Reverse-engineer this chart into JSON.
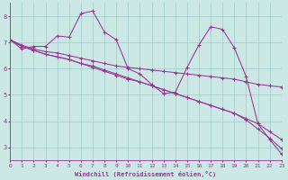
{
  "xlabel": "Windchill (Refroidissement éolien,°C)",
  "bg_color": "#cce8e4",
  "line_color": "#993399",
  "grid_color": "#99cccc",
  "xlim": [
    0,
    23
  ],
  "ylim": [
    2.5,
    8.5
  ],
  "yticks": [
    3,
    4,
    5,
    6,
    7,
    8
  ],
  "xticks": [
    0,
    1,
    2,
    3,
    4,
    5,
    6,
    7,
    8,
    9,
    10,
    11,
    12,
    13,
    14,
    15,
    16,
    17,
    18,
    19,
    20,
    21,
    22,
    23
  ],
  "series": [
    {
      "x": [
        0,
        1,
        2,
        3,
        4,
        5,
        6,
        7,
        8,
        9,
        10,
        11,
        12,
        13,
        14,
        15,
        16,
        17,
        18,
        19,
        20,
        21,
        22,
        23
      ],
      "y": [
        7.1,
        6.75,
        6.85,
        6.85,
        7.25,
        7.2,
        8.1,
        8.2,
        7.4,
        7.1,
        6.0,
        5.8,
        5.4,
        5.05,
        5.1,
        6.05,
        6.9,
        7.6,
        7.5,
        6.8,
        5.7,
        3.9,
        3.3,
        2.75
      ]
    },
    {
      "x": [
        0,
        1,
        2,
        3,
        4,
        5,
        6,
        7,
        8,
        9,
        10,
        11,
        12,
        13,
        14,
        15,
        16,
        17,
        18,
        19,
        20,
        21,
        22,
        23
      ],
      "y": [
        7.1,
        6.9,
        6.75,
        6.65,
        6.6,
        6.5,
        6.4,
        6.3,
        6.2,
        6.1,
        6.05,
        6.0,
        5.95,
        5.9,
        5.85,
        5.8,
        5.75,
        5.7,
        5.65,
        5.6,
        5.5,
        5.4,
        5.35,
        5.3
      ]
    },
    {
      "x": [
        0,
        1,
        2,
        3,
        4,
        5,
        6,
        7,
        8,
        9,
        10,
        11,
        12,
        13,
        14,
        15,
        16,
        17,
        18,
        19,
        20,
        21,
        22,
        23
      ],
      "y": [
        7.1,
        6.85,
        6.7,
        6.55,
        6.45,
        6.35,
        6.2,
        6.05,
        5.9,
        5.75,
        5.6,
        5.5,
        5.35,
        5.2,
        5.05,
        4.9,
        4.75,
        4.6,
        4.45,
        4.3,
        4.1,
        3.9,
        3.6,
        3.3
      ]
    },
    {
      "x": [
        0,
        1,
        2,
        3,
        4,
        5,
        6,
        7,
        8,
        9,
        10,
        11,
        12,
        13,
        14,
        15,
        16,
        17,
        18,
        19,
        20,
        21,
        22,
        23
      ],
      "y": [
        7.1,
        6.85,
        6.7,
        6.55,
        6.45,
        6.35,
        6.2,
        6.1,
        5.95,
        5.8,
        5.65,
        5.5,
        5.35,
        5.2,
        5.05,
        4.9,
        4.75,
        4.6,
        4.45,
        4.3,
        4.05,
        3.7,
        3.35,
        2.95
      ]
    }
  ]
}
